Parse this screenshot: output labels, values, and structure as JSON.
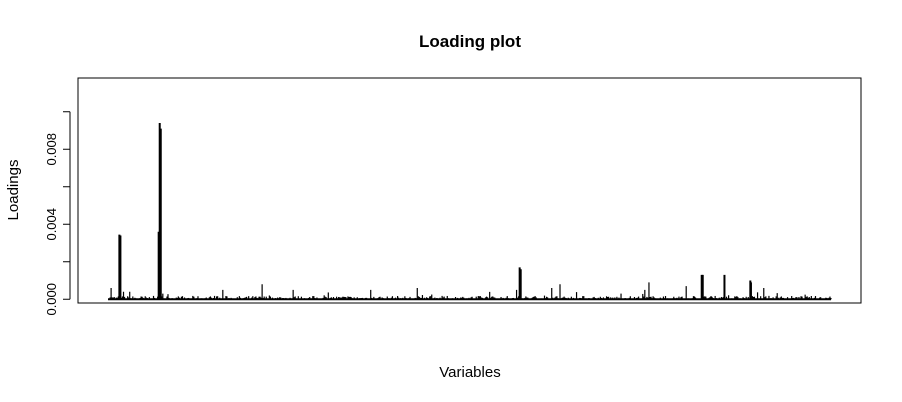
{
  "chart_data": {
    "type": "bar",
    "title": "Loading plot",
    "xlabel": "Variables",
    "ylabel": "Loadings",
    "ylim": [
      -0.0002,
      0.0118
    ],
    "yticks": [
      0.0,
      0.004,
      0.008
    ],
    "ytick_labels": [
      "0.000",
      "0.004",
      "0.008"
    ],
    "n_variables": 700,
    "baseline_max": 0.00018,
    "series": [
      {
        "values_note": "",
        "peaks": [
          {
            "x": 4,
            "value": 0.0006
          },
          {
            "x": 12,
            "value": 0.00345
          },
          {
            "x": 13,
            "value": 0.0034
          },
          {
            "x": 16,
            "value": 0.0004
          },
          {
            "x": 22,
            "value": 0.0004
          },
          {
            "x": 50,
            "value": 0.0036
          },
          {
            "x": 51,
            "value": 0.0094
          },
          {
            "x": 52,
            "value": 0.0091
          },
          {
            "x": 54,
            "value": 0.0003
          },
          {
            "x": 112,
            "value": 0.0005
          },
          {
            "x": 150,
            "value": 0.0008
          },
          {
            "x": 180,
            "value": 0.0005
          },
          {
            "x": 255,
            "value": 0.0005
          },
          {
            "x": 300,
            "value": 0.0006
          },
          {
            "x": 396,
            "value": 0.0005
          },
          {
            "x": 399,
            "value": 0.0017
          },
          {
            "x": 400,
            "value": 0.0016
          },
          {
            "x": 430,
            "value": 0.0006
          },
          {
            "x": 438,
            "value": 0.0008
          },
          {
            "x": 520,
            "value": 0.0005
          },
          {
            "x": 524,
            "value": 0.0009
          },
          {
            "x": 560,
            "value": 0.0007
          },
          {
            "x": 575,
            "value": 0.0013
          },
          {
            "x": 576,
            "value": 0.0013
          },
          {
            "x": 597,
            "value": 0.0013
          },
          {
            "x": 622,
            "value": 0.001
          },
          {
            "x": 623,
            "value": 0.0009
          },
          {
            "x": 635,
            "value": 0.0006
          }
        ]
      }
    ]
  }
}
